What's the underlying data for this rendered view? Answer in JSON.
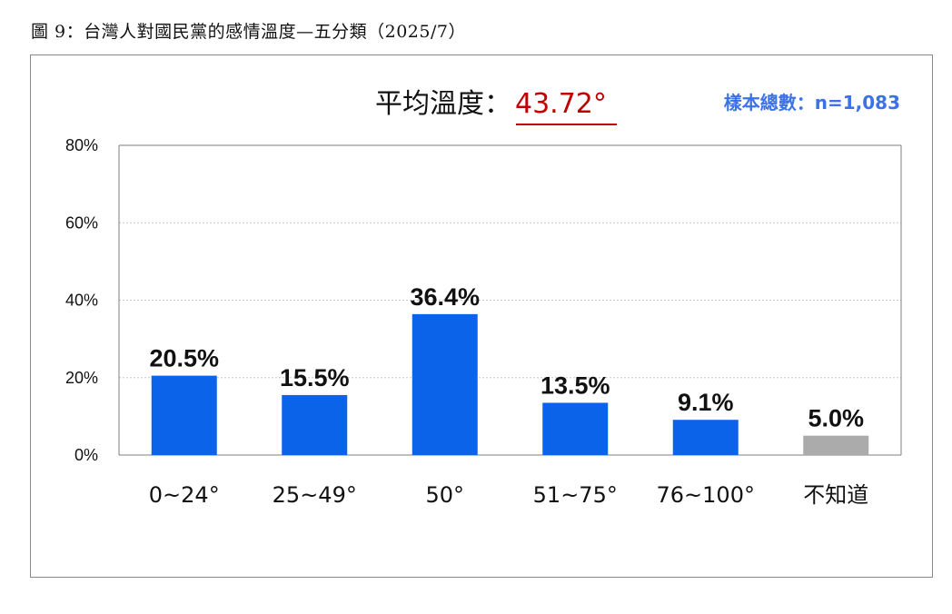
{
  "caption": "圖 9：台灣人對國民黨的感情溫度—五分類（2025/7）",
  "header": {
    "avg_label": "平均溫度：",
    "avg_value": "43.72°",
    "sample_label": "樣本總數：n=1,083"
  },
  "chart_data": {
    "type": "bar",
    "categories": [
      "0~24°",
      "25~49°",
      "50°",
      "51~75°",
      "76~100°",
      "不知道"
    ],
    "values": [
      20.5,
      15.5,
      36.4,
      13.5,
      9.1,
      5.0
    ],
    "value_labels": [
      "20.5%",
      "15.5%",
      "36.4%",
      "13.5%",
      "9.1%",
      "5.0%"
    ],
    "ylim": [
      0,
      80
    ],
    "yticks": [
      0,
      20,
      40,
      60,
      80
    ],
    "ytick_labels": [
      "0%",
      "20%",
      "40%",
      "60%",
      "80%"
    ],
    "grid": true,
    "colors": {
      "main": "#0a63e8",
      "unknown": "#ababab",
      "accent": "#c00000",
      "sample": "#3d72e6"
    }
  }
}
